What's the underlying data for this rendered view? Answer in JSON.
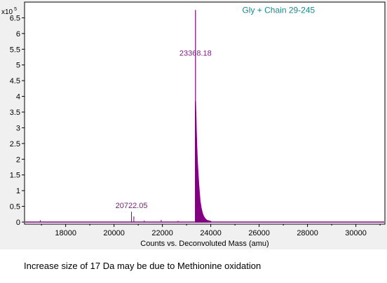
{
  "chart_data": {
    "type": "line",
    "title": "",
    "xlabel": "Counts vs. Deconvoluted Mass (amu)",
    "ylabel": "",
    "y_multiplier_base": "x10",
    "y_multiplier_exp": "5",
    "xlim": [
      16300,
      31200
    ],
    "ylim": [
      0,
      7.0
    ],
    "x_ticks": [
      18000,
      20000,
      22000,
      24000,
      26000,
      28000,
      30000
    ],
    "y_ticks": [
      0,
      0.5,
      1,
      1.5,
      2,
      2.5,
      3,
      3.5,
      4,
      4.5,
      5,
      5.5,
      6,
      6.5
    ],
    "y_tick_labels": [
      "0",
      "0.5",
      "1",
      "1.5",
      "2",
      "2.5",
      "3",
      "3.5",
      "4",
      "4.5",
      "5",
      "5.5",
      "6",
      "6.5"
    ],
    "x_tick_labels": [
      "18000",
      "20000",
      "22000",
      "24000",
      "26000",
      "28000",
      "30000"
    ],
    "grid": false,
    "line_color": "#800080",
    "series": [
      {
        "peaks": [
          {
            "x": 16950,
            "y": 0.06
          },
          {
            "x": 20722.05,
            "y": 0.33
          },
          {
            "x": 20820,
            "y": 0.18
          },
          {
            "x": 21250,
            "y": 0.05
          },
          {
            "x": 21950,
            "y": 0.07
          },
          {
            "x": 22650,
            "y": 0.04
          },
          {
            "x": 23368.18,
            "y": 6.75
          }
        ],
        "tail": [
          {
            "x": 23368.18,
            "y": 3.85
          },
          {
            "x": 23385,
            "y": 3.4
          },
          {
            "x": 23400,
            "y": 2.9
          },
          {
            "x": 23420,
            "y": 2.4
          },
          {
            "x": 23440,
            "y": 2.0
          },
          {
            "x": 23460,
            "y": 1.7
          },
          {
            "x": 23480,
            "y": 1.45
          },
          {
            "x": 23500,
            "y": 1.2
          },
          {
            "x": 23530,
            "y": 0.9
          },
          {
            "x": 23560,
            "y": 0.65
          },
          {
            "x": 23600,
            "y": 0.45
          },
          {
            "x": 23650,
            "y": 0.28
          },
          {
            "x": 23700,
            "y": 0.18
          },
          {
            "x": 23770,
            "y": 0.1
          },
          {
            "x": 23850,
            "y": 0.05
          },
          {
            "x": 24000,
            "y": 0.02
          }
        ]
      }
    ],
    "peak_labels": [
      {
        "text": "23368.18",
        "x": 23368.18,
        "y": 5.3
      },
      {
        "text": "20722.05",
        "x": 20722.05,
        "y": 0.45
      }
    ],
    "annotation": {
      "text": "Gly + Chain 29-245",
      "x": 25300,
      "y": 6.65
    }
  },
  "caption": "Increase size of 17 Da may be due to  Methionine oxidation"
}
